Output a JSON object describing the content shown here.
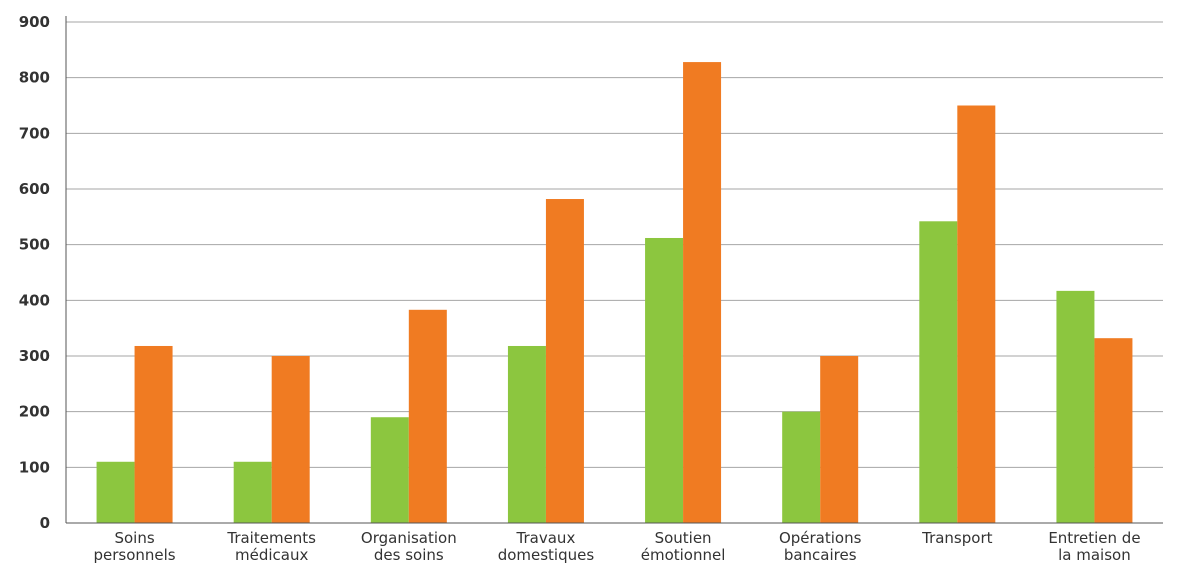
{
  "chart_data": {
    "type": "bar",
    "title": "",
    "xlabel": "",
    "ylabel": "",
    "ylim": [
      0,
      900
    ],
    "yticks": [
      0,
      100,
      200,
      300,
      400,
      500,
      600,
      700,
      800,
      900
    ],
    "grid": true,
    "legend": "none",
    "categories": [
      [
        "Soins",
        "personnels"
      ],
      [
        "Traitements",
        "médicaux"
      ],
      [
        "Organisation",
        "des soins"
      ],
      [
        "Travaux",
        "domestiques"
      ],
      [
        "Soutien",
        "émotionnel"
      ],
      [
        "Opérations",
        "bancaires"
      ],
      [
        "Transport"
      ],
      [
        "Entretien de",
        "la maison"
      ]
    ],
    "series": [
      {
        "color": "#8cc63f",
        "values": [
          110,
          110,
          190,
          318,
          512,
          200,
          542,
          417
        ]
      },
      {
        "color": "#f07b22",
        "values": [
          318,
          300,
          383,
          582,
          828,
          300,
          750,
          332
        ]
      }
    ]
  }
}
